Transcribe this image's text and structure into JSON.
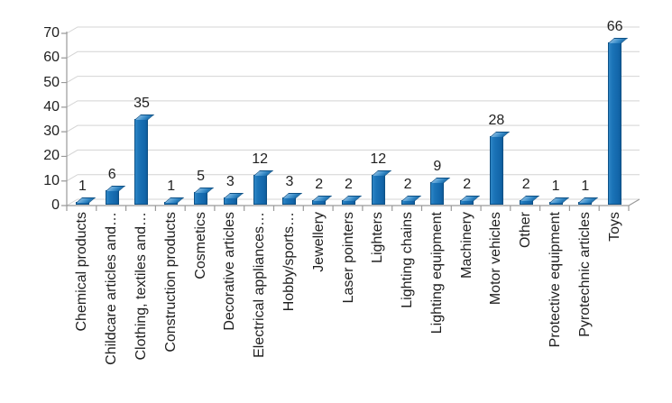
{
  "chart_data": {
    "type": "bar",
    "title": "",
    "xlabel": "",
    "ylabel": "",
    "ylim": [
      0,
      70
    ],
    "yticks": [
      0,
      10,
      20,
      30,
      40,
      50,
      60,
      70
    ],
    "grid": true,
    "legend": null,
    "style": "3d-bar",
    "categories": [
      "Chemical products",
      "Childcare articles and…",
      "Clothing, textiles and…",
      "Construction products",
      "Cosmetics",
      "Decorative articles",
      "Electrical appliances…",
      "Hobby/sports…",
      "Jewellery",
      "Laser pointers",
      "Lighters",
      "Lighting chains",
      "Lighting equipment",
      "Machinery",
      "Motor vehicles",
      "Other",
      "Protective equipment",
      "Pyrotechnic articles",
      "Toys"
    ],
    "values": [
      1,
      6,
      35,
      1,
      5,
      3,
      12,
      3,
      2,
      2,
      12,
      2,
      9,
      2,
      28,
      2,
      1,
      1,
      66
    ],
    "colors": {
      "bar": "#1b74b8",
      "bar_highlight": "#79b3de",
      "bar_outline": "#0e5186",
      "gridline": "#d4d4d4",
      "axis": "#9a9a9a",
      "text": "#1f1f1f",
      "background": "#ffffff"
    }
  }
}
